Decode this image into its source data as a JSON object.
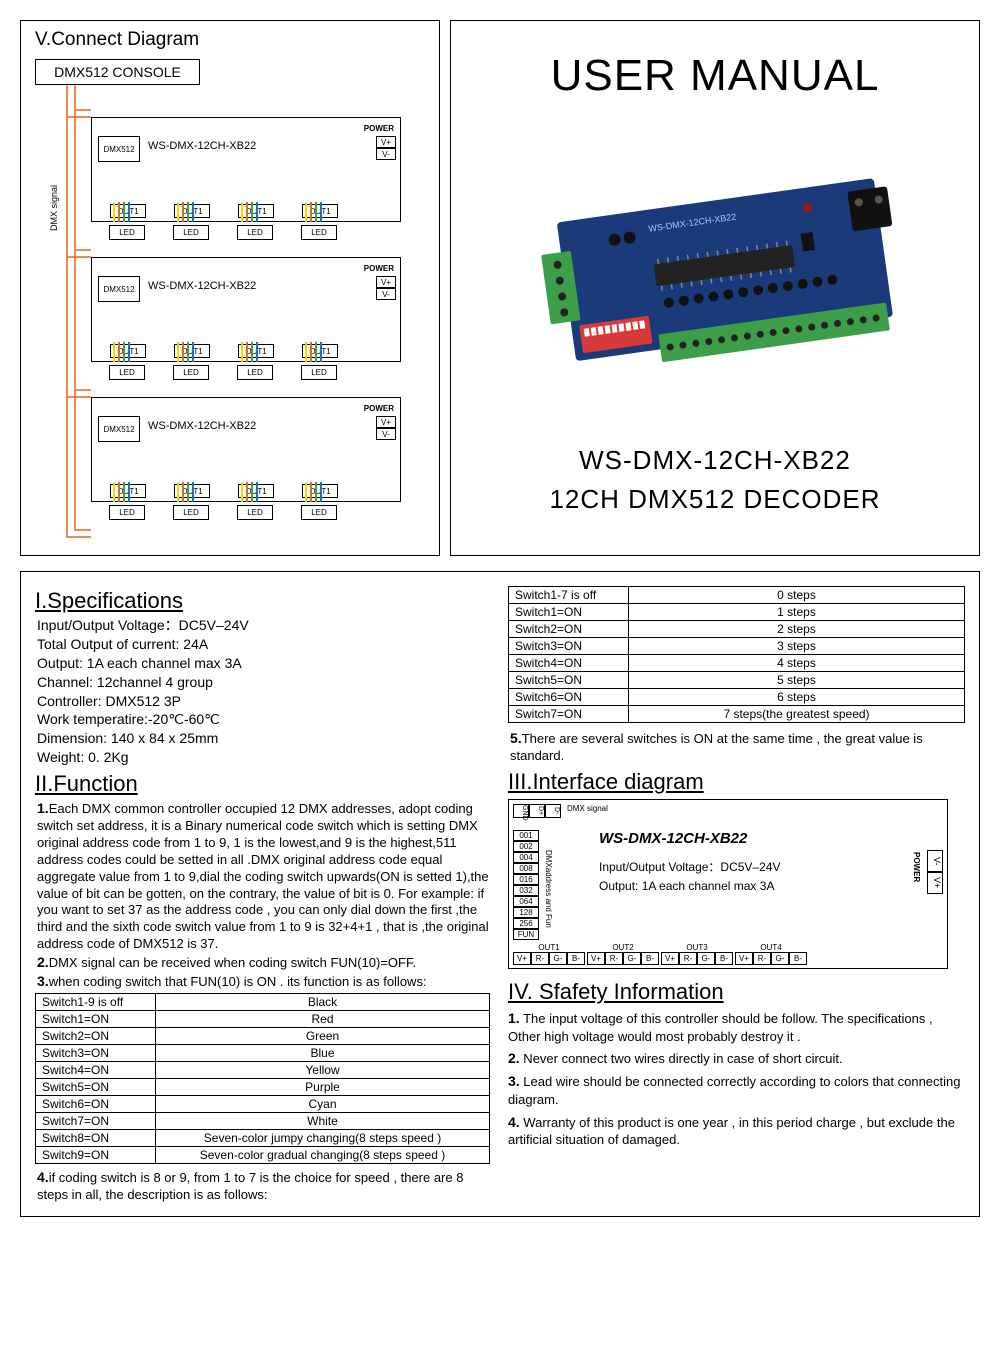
{
  "connect": {
    "title": "V.Connect Diagram",
    "console": "DMX512 CONSOLE",
    "side_label": "DMX  signal",
    "module": {
      "dmx_port": "DMX512",
      "label": "WS-DMX-12CH-XB22",
      "power_label": "POWER",
      "vplus": "V+",
      "vminus": "V-",
      "out": "OUT1",
      "led": "LED"
    },
    "wire_colors": [
      "#f5d400",
      "#e8651a",
      "#3aa64a",
      "#1a6fc9"
    ],
    "dmx_line_color": "#e8651a"
  },
  "title_panel": {
    "manual": "USER MANUAL",
    "product1": "WS-DMX-12CH-XB22",
    "product2": "12CH DMX512 DECODER"
  },
  "pcb": {
    "board_color": "#1a3a7a",
    "terminal_color": "#3d9e4a",
    "dip_color": "#d83a3a",
    "chip_color": "#222222"
  },
  "specs": {
    "title": "I.Specifications",
    "lines": [
      "Input/Output Voltage：DC5V–24V",
      "Total Output of current: 24A",
      "Output: 1A each channel max 3A",
      "Channel: 12channel 4 group",
      "Controller: DMX512  3P",
      "Work temperatire:-20℃-60℃",
      "Dimension: 140 x 84 x 25mm",
      "Weight: 0. 2Kg"
    ]
  },
  "func": {
    "title": "II.Function",
    "p1_num": "1.",
    "p1": "Each DMX common controller occupied 12 DMX addresses, adopt coding switch set address, it is a Binary numerical code switch which is setting DMX original address code from 1 to 9, 1 is the lowest,and 9 is the highest,511 address codes  could be setted  in all .DMX original address code equal aggregate value from 1 to 9,dial the coding switch upwards(ON is setted 1),the value of bit can be  gotten, on the contrary, the value of bit is 0. For example: if you want to set 37 as the address code , you can only dial down the first ,the third and the  sixth code switch value from 1 to 9 is 32+4+1 , that is ,the original address  code of DMX512 is 37.",
    "p2_num": "2.",
    "p2": "DMX signal can be received when coding switch FUN(10)=OFF.",
    "p3_num": "3.",
    "p3": "when coding switch that FUN(10) is ON . its function is as follows:",
    "color_table": [
      [
        "Switch1-9 is off",
        "Black"
      ],
      [
        "Switch1=ON",
        "Red"
      ],
      [
        "Switch2=ON",
        "Green"
      ],
      [
        "Switch3=ON",
        "Blue"
      ],
      [
        "Switch4=ON",
        "Yellow"
      ],
      [
        "Switch5=ON",
        "Purple"
      ],
      [
        "Switch6=ON",
        "Cyan"
      ],
      [
        "Switch7=ON",
        "White"
      ],
      [
        "Switch8=ON",
        "Seven-color jumpy changing(8 steps speed )"
      ],
      [
        "Switch9=ON",
        "Seven-color gradual changing(8 steps speed )"
      ]
    ],
    "p4_num": "4.",
    "p4": "if coding switch is 8 or 9,  from 1 to 7 is the choice for speed , there are 8 steps in all, the description is as follows:"
  },
  "speed_table": [
    [
      "Switch1-7 is off",
      "0 steps"
    ],
    [
      "Switch1=ON",
      "1 steps"
    ],
    [
      "Switch2=ON",
      "2 steps"
    ],
    [
      "Switch3=ON",
      "3 steps"
    ],
    [
      "Switch4=ON",
      "4 steps"
    ],
    [
      "Switch5=ON",
      "5 steps"
    ],
    [
      "Switch6=ON",
      "6 steps"
    ],
    [
      "Switch7=ON",
      "7 steps(the greatest speed)"
    ]
  ],
  "p5_num": "5.",
  "p5": "There are several switches is ON at the same time , the great value is standard.",
  "interface": {
    "title": "III.Interface diagram",
    "box_title": "WS-DMX-12CH-XB22",
    "spec1": "Input/Output Voltage：DC5V–24V",
    "spec2": "Output: 1A each channel max 3A",
    "left_ports": [
      "001",
      "002",
      "004",
      "008",
      "016",
      "032",
      "064",
      "128",
      "256",
      "FUN"
    ],
    "left_label": "DMXaddress and Fun",
    "top_ports": [
      "GND",
      "D+",
      "D-"
    ],
    "top_label": "DMX signal",
    "power_label": "POWER",
    "vminus": "V-",
    "vplus": "V+",
    "outs": [
      "OUT1",
      "OUT2",
      "OUT3",
      "OUT4"
    ],
    "out_pins": [
      "V+",
      "R-",
      "G-",
      "B-"
    ]
  },
  "safety": {
    "title": "IV. Sfafety Information",
    "items": [
      {
        "num": "1.",
        "text": "The input voltage of this controller should be follow. The specifications , Other high voltage would most probably destroy it ."
      },
      {
        "num": "2.",
        "text": "Never connect two wires directly in case of short circuit."
      },
      {
        "num": "3.",
        "text": "Lead wire should be connected correctly according to colors that connecting diagram."
      },
      {
        "num": "4.",
        "text": "Warranty of this product is one year , in this period charge , but exclude the artificial situation of damaged."
      }
    ]
  }
}
